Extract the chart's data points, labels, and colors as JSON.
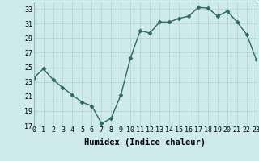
{
  "x": [
    0,
    1,
    2,
    3,
    4,
    5,
    6,
    7,
    8,
    9,
    10,
    11,
    12,
    13,
    14,
    15,
    16,
    17,
    18,
    19,
    20,
    21,
    22,
    23
  ],
  "y": [
    23.5,
    24.8,
    23.3,
    22.2,
    21.2,
    20.2,
    19.7,
    17.3,
    18.0,
    21.2,
    26.3,
    30.0,
    29.7,
    31.2,
    31.2,
    31.7,
    32.0,
    33.2,
    33.1,
    32.0,
    32.7,
    31.2,
    29.5,
    26.0
  ],
  "line_color": "#2d6b5e",
  "marker": "D",
  "marker_size": 2.5,
  "bg_color": "#ceeaeb",
  "grid_color": "#b8d4d5",
  "xlabel": "Humidex (Indice chaleur)",
  "xlim": [
    0,
    23
  ],
  "ylim": [
    17,
    34
  ],
  "yticks": [
    17,
    19,
    21,
    23,
    25,
    27,
    29,
    31,
    33
  ],
  "xticks": [
    0,
    1,
    2,
    3,
    4,
    5,
    6,
    7,
    8,
    9,
    10,
    11,
    12,
    13,
    14,
    15,
    16,
    17,
    18,
    19,
    20,
    21,
    22,
    23
  ],
  "tick_label_fontsize": 6,
  "xlabel_fontsize": 7.5,
  "line_width": 1.0
}
